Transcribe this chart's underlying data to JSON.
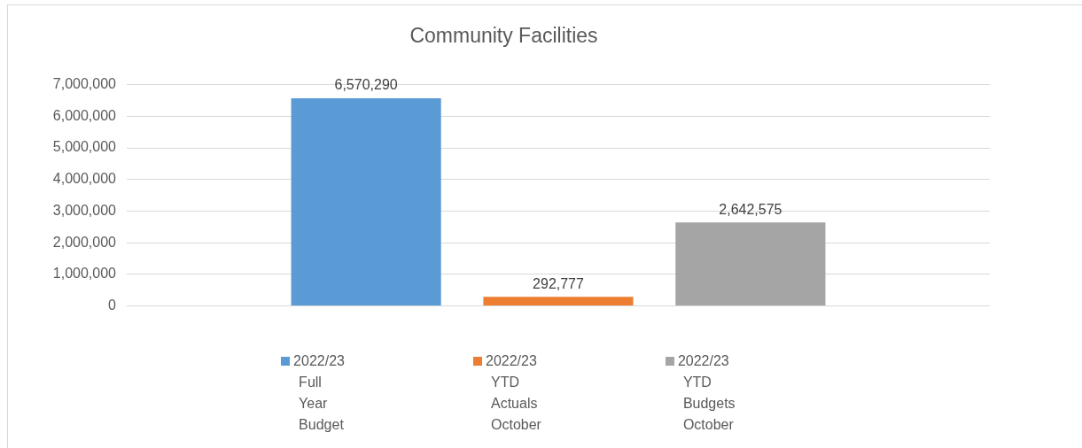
{
  "chart_data": {
    "type": "bar",
    "title": "Community Facilities",
    "categories": [
      null
    ],
    "series": [
      {
        "name": "2022/23 Full Year Budget",
        "color": "#5b9bd5",
        "values": [
          6570290
        ],
        "value_labels": [
          "6,570,290"
        ]
      },
      {
        "name": "2022/23 YTD Actuals October",
        "color": "#ed7d31",
        "values": [
          292777
        ],
        "value_labels": [
          "292,777"
        ]
      },
      {
        "name": "2022/23 YTD Budgets October",
        "color": "#a5a5a5",
        "values": [
          2642575
        ],
        "value_labels": [
          "2,642,575"
        ]
      }
    ],
    "ylim": [
      0,
      7000000
    ],
    "yticks": [
      0,
      {
        "value": 1000000,
        "label": "1,000,000"
      },
      {
        "value": 2000000,
        "label": "2,000,000"
      },
      {
        "value": 3000000,
        "label": "3,000,000"
      },
      {
        "value": 4000000,
        "label": "4,000,000"
      },
      {
        "value": 5000000,
        "label": "5,000,000"
      },
      {
        "value": 6000000,
        "label": "6,000,000"
      },
      {
        "value": 7000000,
        "label": "7,000,000"
      }
    ],
    "grid": "y",
    "legend": "bottom"
  }
}
